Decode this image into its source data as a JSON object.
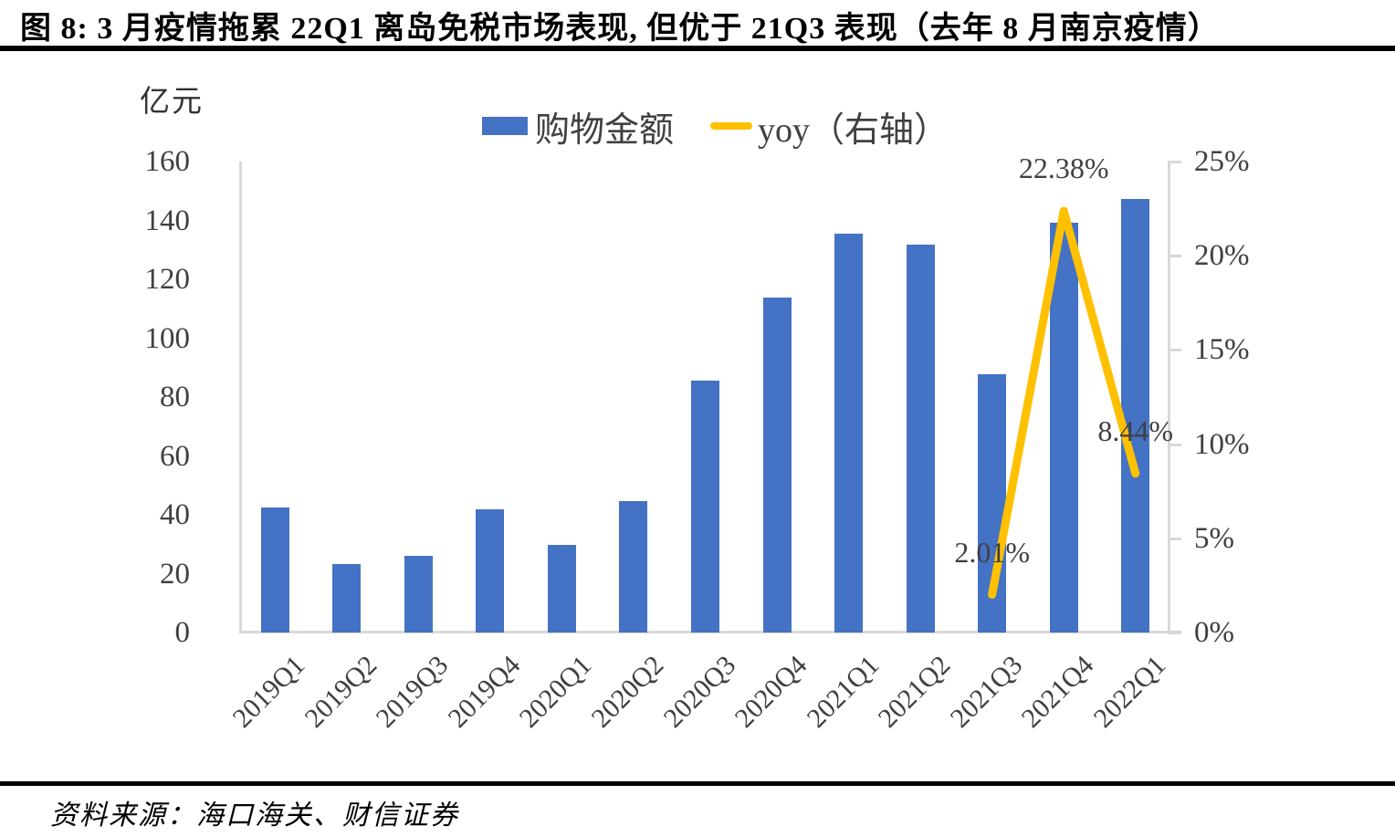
{
  "header": {
    "title": "图 8: 3 月疫情拖累 22Q1 离岛免税市场表现, 但优于 21Q3 表现（去年 8 月南京疫情）"
  },
  "footer": {
    "source": "资料来源：海口海关、财信证券"
  },
  "chart_data": {
    "type": "bar",
    "combo": "bar+line dual axis",
    "grid": false,
    "legend_position": "top",
    "categories": [
      "2019Q1",
      "2019Q2",
      "2019Q3",
      "2019Q4",
      "2020Q1",
      "2020Q2",
      "2020Q3",
      "2020Q4",
      "2021Q1",
      "2021Q2",
      "2021Q3",
      "2021Q4",
      "2022Q1"
    ],
    "series": [
      {
        "name": "购物金额",
        "type": "bar",
        "axis": "left",
        "color": "#4472C4",
        "values": [
          42.5,
          23.3,
          25.9,
          42.0,
          29.8,
          44.7,
          85.6,
          113.8,
          135.5,
          131.8,
          87.8,
          139.2,
          147.3
        ]
      },
      {
        "name": "yoy（右轴）",
        "type": "line",
        "axis": "right",
        "color": "#FFC000",
        "values": [
          null,
          null,
          null,
          null,
          null,
          null,
          null,
          null,
          null,
          null,
          2.01,
          22.38,
          8.44
        ]
      }
    ],
    "left_axis": {
      "title": "亿元",
      "min": 0,
      "max": 160,
      "step": 20,
      "tick_labels": [
        "0",
        "20",
        "40",
        "60",
        "80",
        "100",
        "120",
        "140",
        "160"
      ]
    },
    "right_axis": {
      "min": 0,
      "max": 25,
      "step": 5,
      "tick_labels": [
        "0%",
        "5%",
        "10%",
        "15%",
        "20%",
        "25%"
      ]
    },
    "annotations": [
      {
        "text": "2.01%",
        "category": "2021Q3",
        "value": 2.01,
        "dy": -64
      },
      {
        "text": "22.38%",
        "category": "2021Q4",
        "value": 22.38,
        "dy": -64
      },
      {
        "text": "8.44%",
        "category": "2022Q1",
        "value": 8.44,
        "dy": -64
      }
    ],
    "colors": {
      "axis_line": "#d9d9d9",
      "tick_text": "#404040",
      "annotation_text": "#404040"
    }
  }
}
